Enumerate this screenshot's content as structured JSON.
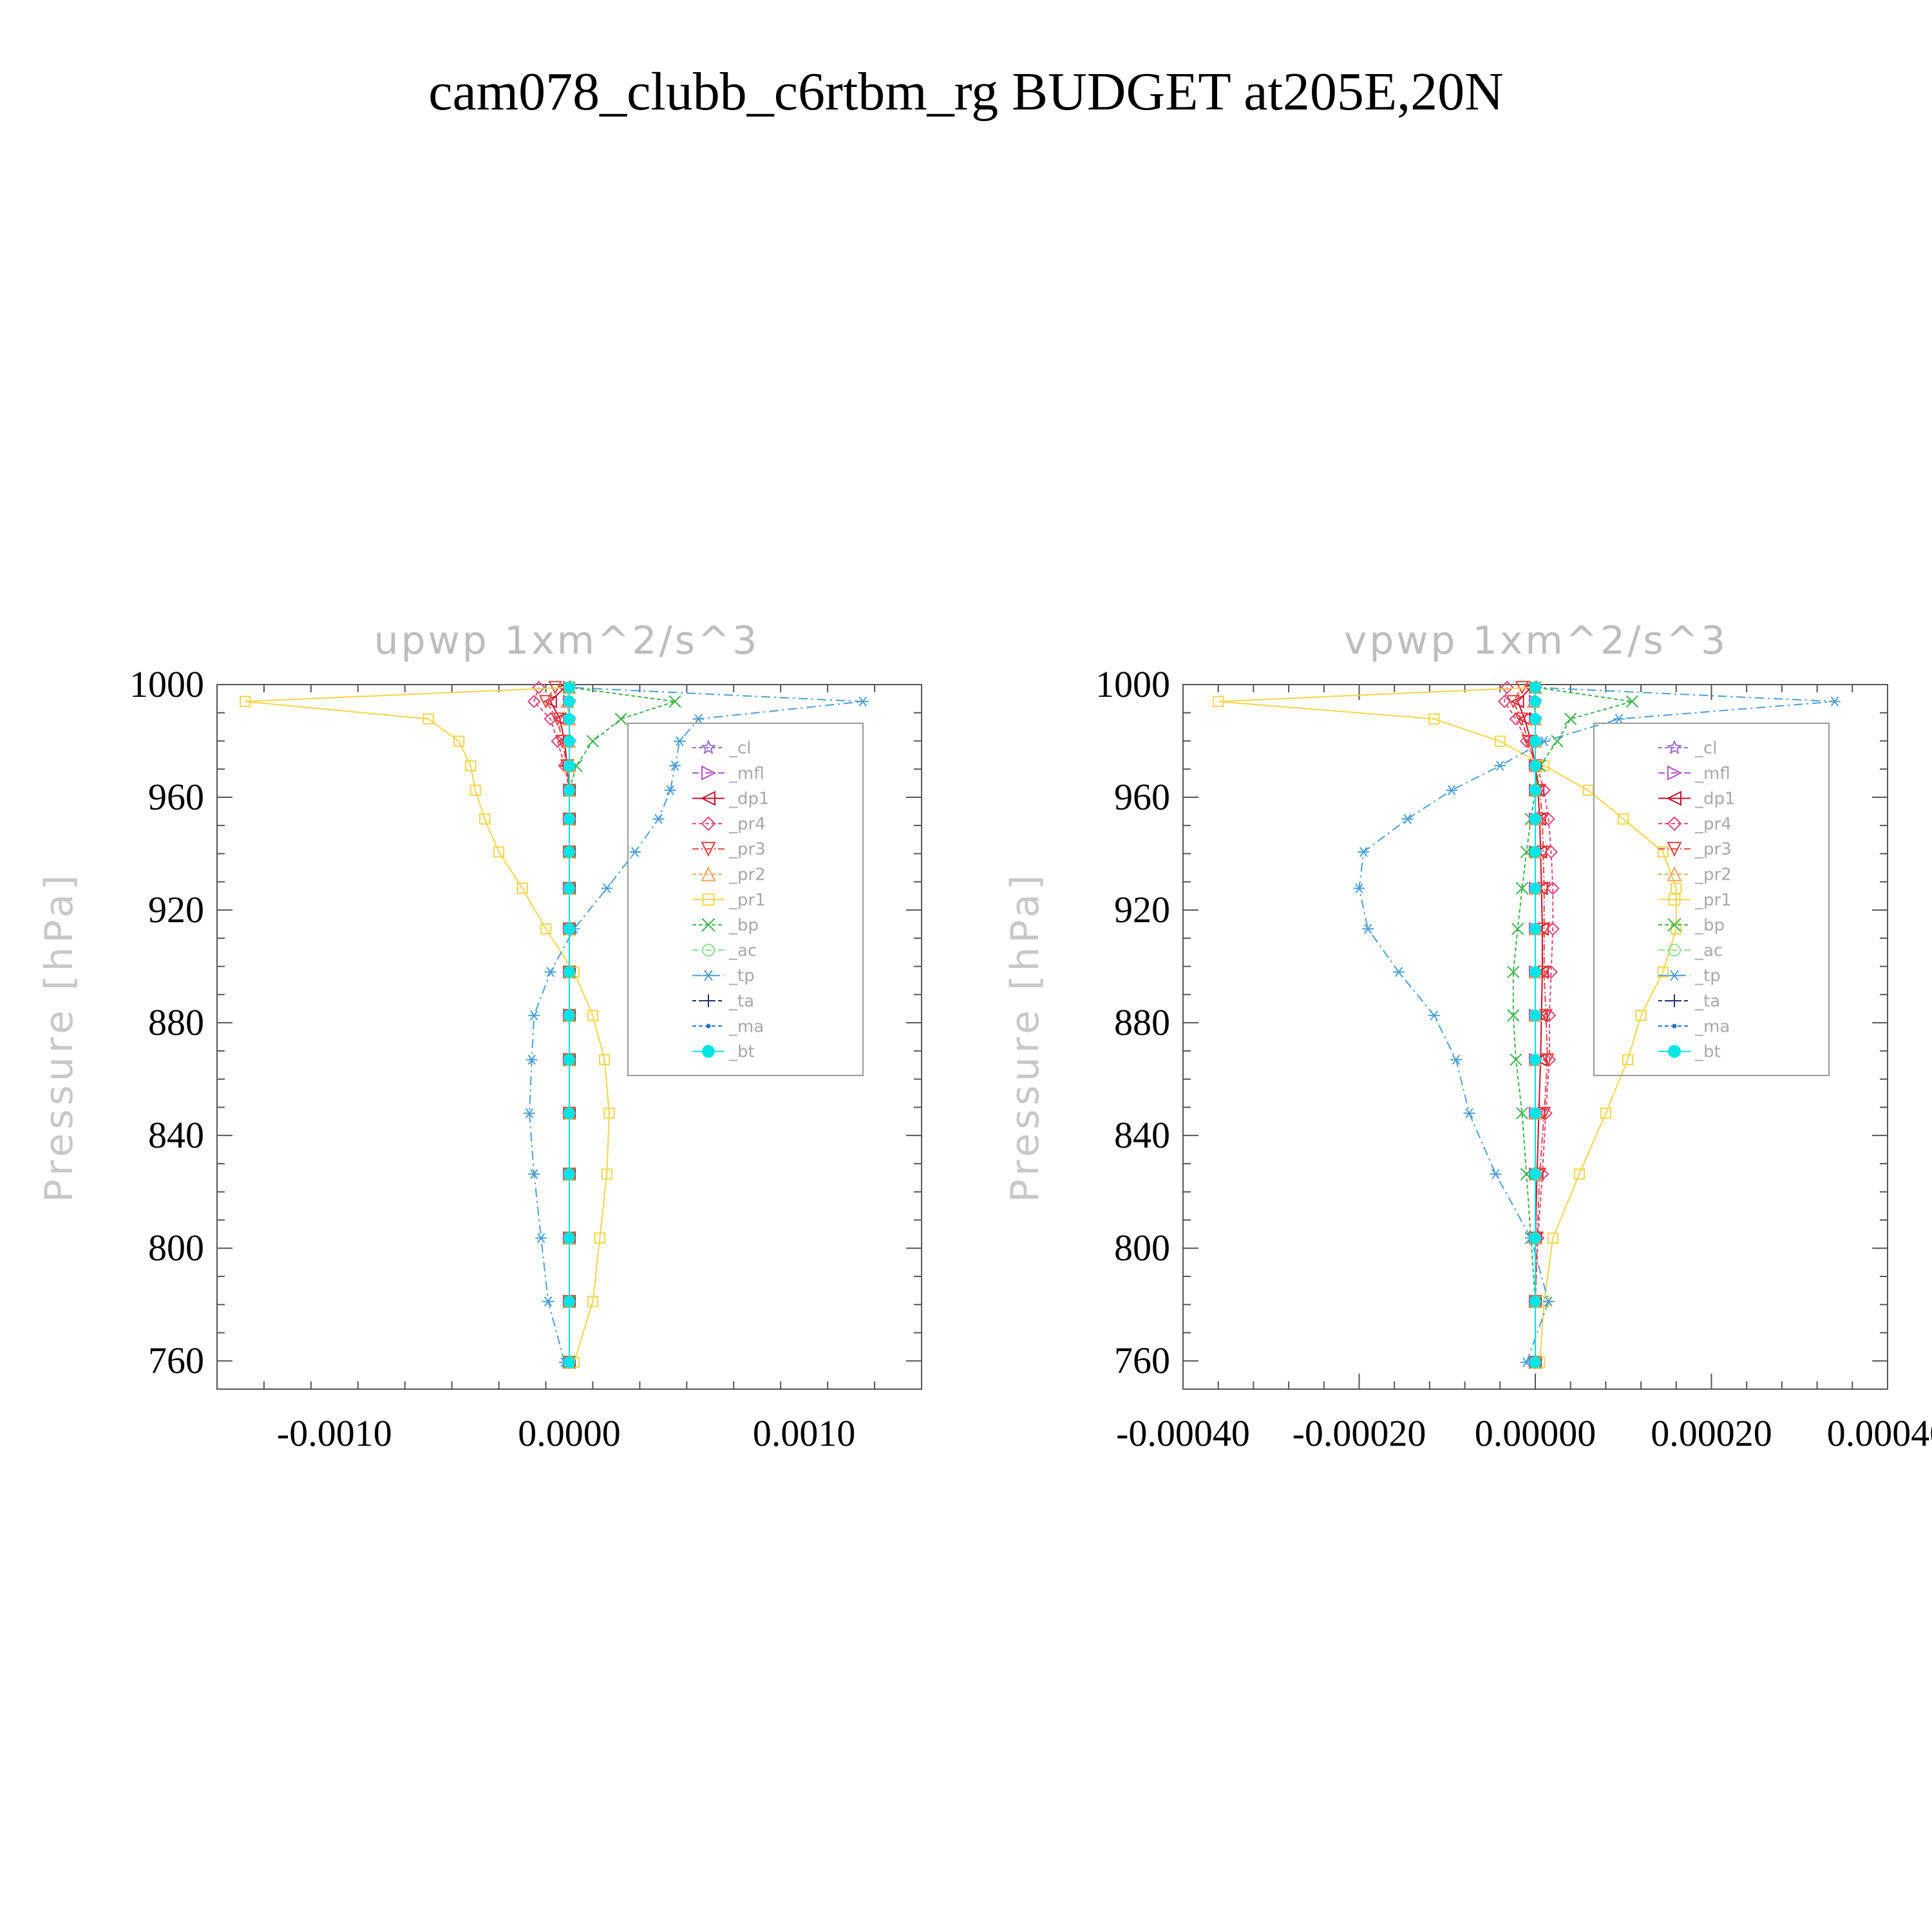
{
  "page": {
    "title": "cam078_clubb_c6rtbm_rg  BUDGET at205E,20N"
  },
  "legend_items": [
    {
      "label": "_cl",
      "color": "#9a6dcf",
      "marker": "star",
      "dash": "6 4"
    },
    {
      "label": "_mfl",
      "color": "#b14fc5",
      "marker": "tri-right",
      "dash": "10 4 2 4"
    },
    {
      "label": "_dp1",
      "color": "#c8102e",
      "marker": "tri-left",
      "dash": ""
    },
    {
      "label": "_pr4",
      "color": "#e0457b",
      "marker": "diamond",
      "dash": "6 4"
    },
    {
      "label": "_pr3",
      "color": "#e8413c",
      "marker": "tri-down",
      "dash": "10 4 2 4"
    },
    {
      "label": "_pr2",
      "color": "#f0a35e",
      "marker": "tri-up",
      "dash": "6 4"
    },
    {
      "label": "_pr1",
      "color": "#f5d547",
      "marker": "square",
      "dash": ""
    },
    {
      "label": "_bp",
      "color": "#3cb44b",
      "marker": "x",
      "dash": "6 4"
    },
    {
      "label": "_ac",
      "color": "#8ee08e",
      "marker": "circle",
      "dash": "10 4 2 4"
    },
    {
      "label": "_tp",
      "color": "#4a9fd8",
      "marker": "asterisk",
      "dash": "14 6 3 6"
    },
    {
      "label": "_ta",
      "color": "#1f2f6f",
      "marker": "plus",
      "dash": "6 4"
    },
    {
      "label": "_ma",
      "color": "#1f6fcf",
      "marker": "dot",
      "dash": "6 4"
    },
    {
      "label": "_bt",
      "color": "#00e5e5",
      "marker": "filled-circle",
      "dash": ""
    }
  ],
  "chart_data": [
    {
      "type": "line",
      "title": "upwp    1xm^2/s^3",
      "ylabel": "Pressure  [hPa]",
      "xlabel": "",
      "xlim": [
        -0.0015,
        0.0015
      ],
      "ylim": [
        1000,
        750
      ],
      "xticks": [
        -0.001,
        0.0,
        0.001
      ],
      "xtick_labels": [
        "-0.0010",
        "0.0000",
        "0.0010"
      ],
      "yticks": [
        760,
        800,
        840,
        880,
        920,
        960,
        1000
      ],
      "ytick_labels": [
        "760",
        "800",
        "840",
        "880",
        "920",
        "960",
        "1000"
      ],
      "legend": "top-right",
      "y": [
        759.5,
        781.1,
        803.6,
        826.3,
        847.9,
        866.9,
        882.6,
        898.0,
        913.3,
        927.7,
        940.6,
        952.3,
        962.5,
        971.2,
        979.9,
        987.8,
        994.0,
        999.0
      ],
      "series": [
        {
          "name": "_cl",
          "values": [
            0,
            0,
            0,
            0,
            0,
            0,
            0,
            0,
            0,
            0,
            0,
            0,
            0,
            0,
            0,
            0,
            0,
            0
          ]
        },
        {
          "name": "_mfl",
          "values": [
            0,
            0,
            0,
            0,
            0,
            0,
            0,
            0,
            0,
            0,
            0,
            0,
            0,
            0,
            0,
            0,
            0,
            0
          ]
        },
        {
          "name": "_dp1",
          "values": [
            0,
            0,
            0,
            0,
            0,
            0,
            0,
            0,
            0,
            0,
            0,
            0,
            0,
            -1e-05,
            -2e-05,
            -4e-05,
            -8e-05,
            -2e-05
          ]
        },
        {
          "name": "_pr4",
          "values": [
            0,
            0,
            0,
            0,
            0,
            0,
            0,
            0,
            0,
            0,
            0,
            0,
            0,
            -2e-05,
            -5e-05,
            -8e-05,
            -0.00015,
            -0.00013
          ]
        },
        {
          "name": "_pr3",
          "values": [
            0,
            0,
            0,
            0,
            0,
            0,
            0,
            0,
            0,
            0,
            0,
            0,
            0,
            -1e-05,
            -3e-05,
            -5e-05,
            -0.0001,
            -6e-05
          ]
        },
        {
          "name": "_pr2",
          "values": [
            0,
            0,
            0,
            0,
            0,
            0,
            0,
            0,
            0,
            0,
            0,
            0,
            0,
            0,
            0,
            0,
            -1e-05,
            0
          ]
        },
        {
          "name": "_pr1",
          "values": [
            2e-05,
            0.0001,
            0.00013,
            0.00016,
            0.00017,
            0.00015,
            0.0001,
            2e-05,
            -0.0001,
            -0.0002,
            -0.0003,
            -0.00036,
            -0.0004,
            -0.00042,
            -0.00047,
            -0.0006,
            -0.00138,
            0
          ]
        },
        {
          "name": "_bp",
          "values": [
            0,
            0,
            0,
            0,
            0,
            0,
            0,
            0,
            0,
            0,
            0,
            0,
            0,
            3e-05,
            0.0001,
            0.00022,
            0.00045,
            0
          ]
        },
        {
          "name": "_ac",
          "values": [
            0,
            0,
            0,
            0,
            0,
            0,
            0,
            0,
            0,
            0,
            0,
            0,
            0,
            0,
            0,
            0,
            0,
            0
          ]
        },
        {
          "name": "_tp",
          "values": [
            -2e-05,
            -9e-05,
            -0.00012,
            -0.00015,
            -0.00017,
            -0.00016,
            -0.00015,
            -8e-05,
            2e-05,
            0.00016,
            0.00028,
            0.00038,
            0.00043,
            0.00045,
            0.00047,
            0.00055,
            0.00125,
            0
          ]
        },
        {
          "name": "_ta",
          "values": [
            0,
            0,
            0,
            0,
            0,
            0,
            0,
            0,
            0,
            0,
            0,
            0,
            0,
            0,
            0,
            0,
            0,
            0
          ]
        },
        {
          "name": "_ma",
          "values": [
            0,
            0,
            0,
            0,
            0,
            0,
            0,
            0,
            0,
            0,
            0,
            0,
            0,
            0,
            0,
            0,
            0,
            0
          ]
        },
        {
          "name": "_bt",
          "values": [
            0,
            0,
            0,
            0,
            0,
            0,
            0,
            0,
            0,
            0,
            0,
            0,
            0,
            0,
            0,
            0,
            0,
            0
          ]
        }
      ]
    },
    {
      "type": "line",
      "title": "vpwp    1xm^2/s^3",
      "ylabel": "Pressure  [hPa]",
      "xlabel": "",
      "xlim": [
        -0.0004,
        0.0004
      ],
      "ylim": [
        1000,
        750
      ],
      "xticks": [
        -0.0004,
        -0.0002,
        0.0,
        0.0002,
        0.0004
      ],
      "xtick_labels": [
        "-0.00040",
        "-0.00020",
        "0.00000",
        "0.00020",
        "0.00040"
      ],
      "yticks": [
        760,
        800,
        840,
        880,
        920,
        960,
        1000
      ],
      "ytick_labels": [
        "760",
        "800",
        "840",
        "880",
        "920",
        "960",
        "1000"
      ],
      "legend": "top-right",
      "y": [
        759.5,
        781.1,
        803.6,
        826.3,
        847.9,
        866.9,
        882.6,
        898.0,
        913.3,
        927.7,
        940.6,
        952.3,
        962.5,
        971.2,
        979.9,
        987.8,
        994.0,
        999.0
      ],
      "series": [
        {
          "name": "_cl",
          "values": [
            0,
            0,
            0,
            0,
            0,
            0,
            0,
            0,
            0,
            0,
            0,
            0,
            0,
            0,
            0,
            0,
            0,
            0
          ]
        },
        {
          "name": "_mfl",
          "values": [
            0,
            0,
            0,
            0,
            0,
            0,
            0,
            0,
            0,
            0,
            0,
            0,
            0,
            0,
            0,
            0,
            0,
            0
          ]
        },
        {
          "name": "_dp1",
          "values": [
            0,
            0,
            0,
            2e-06,
            4e-06,
            6e-06,
            7e-06,
            8e-06,
            8e-06,
            7e-06,
            6e-06,
            5e-06,
            3e-06,
            0,
            -5e-06,
            -1.2e-05,
            -2e-05,
            -5e-06
          ]
        },
        {
          "name": "_pr4",
          "values": [
            0,
            0,
            3e-06,
            8e-06,
            1.2e-05,
            1.6e-05,
            1.6e-05,
            1.8e-05,
            2e-05,
            2e-05,
            1.8e-05,
            1.5e-05,
            1e-05,
            2e-06,
            -1e-05,
            -2.2e-05,
            -3.5e-05,
            -3.2e-05
          ]
        },
        {
          "name": "_pr3",
          "values": [
            0,
            0,
            2e-06,
            5e-06,
            1e-05,
            1.4e-05,
            1.2e-05,
            1e-05,
            1e-05,
            1e-05,
            9e-06,
            8e-06,
            5e-06,
            0,
            -8e-06,
            -1.6e-05,
            -2.5e-05,
            -1.5e-05
          ]
        },
        {
          "name": "_pr2",
          "values": [
            0,
            0,
            0,
            0,
            0,
            0,
            0,
            0,
            0,
            0,
            0,
            0,
            0,
            0,
            0,
            0,
            -2e-06,
            0
          ]
        },
        {
          "name": "_pr1",
          "values": [
            5e-06,
            1e-05,
            2e-05,
            5e-05,
            8e-05,
            0.000105,
            0.00012,
            0.000145,
            0.00016,
            0.00016,
            0.000145,
            0.0001,
            6e-05,
            1e-05,
            -4e-05,
            -0.000115,
            -0.00036,
            0
          ]
        },
        {
          "name": "_bp",
          "values": [
            0,
            0,
            -5e-06,
            -1e-05,
            -1.5e-05,
            -2.2e-05,
            -2.5e-05,
            -2.5e-05,
            -2e-05,
            -1.5e-05,
            -1e-05,
            -5e-06,
            0,
            5e-06,
            2.5e-05,
            4e-05,
            0.00011,
            0
          ]
        },
        {
          "name": "_ac",
          "values": [
            0,
            0,
            0,
            0,
            0,
            0,
            0,
            0,
            0,
            0,
            0,
            0,
            0,
            0,
            0,
            0,
            0,
            0
          ]
        },
        {
          "name": "_tp",
          "values": [
            -1e-05,
            1.5e-05,
            -5e-06,
            -4.5e-05,
            -7.5e-05,
            -9e-05,
            -0.000115,
            -0.000155,
            -0.00019,
            -0.0002,
            -0.000195,
            -0.000145,
            -9.5e-05,
            -4e-05,
            1e-05,
            9.5e-05,
            0.00034,
            0
          ]
        },
        {
          "name": "_ta",
          "values": [
            0,
            0,
            0,
            0,
            0,
            0,
            0,
            0,
            0,
            0,
            0,
            0,
            0,
            0,
            0,
            0,
            0,
            0
          ]
        },
        {
          "name": "_ma",
          "values": [
            0,
            0,
            0,
            0,
            0,
            0,
            0,
            0,
            0,
            0,
            0,
            0,
            0,
            0,
            0,
            0,
            0,
            0
          ]
        },
        {
          "name": "_bt",
          "values": [
            0,
            0,
            0,
            0,
            0,
            0,
            0,
            0,
            0,
            0,
            0,
            0,
            0,
            0,
            0,
            0,
            0,
            0
          ]
        }
      ]
    }
  ]
}
